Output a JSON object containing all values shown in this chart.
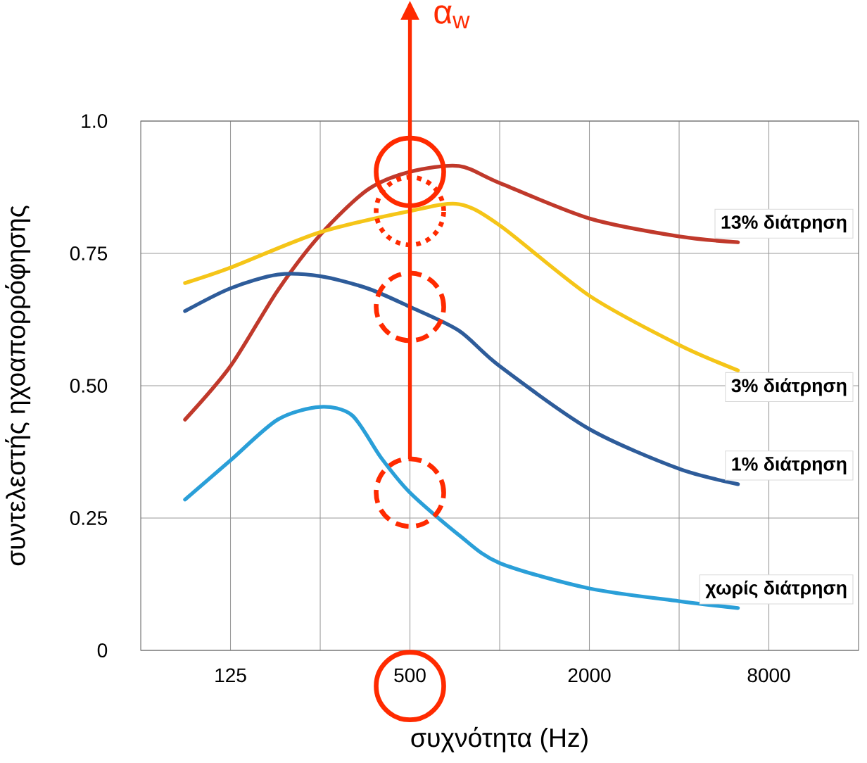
{
  "chart_data": {
    "type": "line",
    "xlabel": "συχνότητα (Hz)",
    "ylabel": "συντελεστής ηχοαπορρόφησης",
    "log": "x",
    "grid": true,
    "legend": false,
    "marker": "none",
    "line_style": "solid",
    "xlim": [
      62.5,
      16000
    ],
    "ylim": [
      0,
      1
    ],
    "xticks": [
      125,
      {
        "value": 250,
        "label": null
      },
      500,
      {
        "value": 1000,
        "label": null
      },
      2000,
      {
        "value": 4000,
        "label": null
      },
      8000
    ],
    "yticks": [
      0,
      {
        "value": 0.25,
        "label": "0.25"
      },
      {
        "value": 0.5,
        "label": "0.50"
      },
      {
        "value": 0.75,
        "label": "0.75"
      },
      {
        "value": 1,
        "label": "1.0"
      }
    ],
    "series": [
      {
        "name": "13% διάτρηση",
        "color": "#c0392b",
        "x": [
          88,
          125,
          180,
          250,
          360,
          500,
          730,
          1000,
          2000,
          4000,
          6300
        ],
        "values": [
          0.436,
          0.537,
          0.68,
          0.785,
          0.87,
          0.904,
          0.915,
          0.883,
          0.816,
          0.782,
          0.771
        ]
      },
      {
        "name": "3% διάτρηση",
        "color": "#f5c518",
        "x": [
          88,
          125,
          250,
          500,
          730,
          1000,
          2000,
          4000,
          6300
        ],
        "values": [
          0.694,
          0.723,
          0.79,
          0.83,
          0.843,
          0.803,
          0.67,
          0.577,
          0.529
        ]
      },
      {
        "name": "1% διάτρηση",
        "color": "#2e5c9a",
        "x": [
          88,
          125,
          180,
          250,
          360,
          500,
          730,
          1000,
          2000,
          4000,
          6300
        ],
        "values": [
          0.641,
          0.684,
          0.71,
          0.707,
          0.684,
          0.649,
          0.604,
          0.537,
          0.418,
          0.343,
          0.314
        ]
      },
      {
        "name": "χωρίς διάτρηση",
        "color": "#2a9fd8",
        "x": [
          88,
          125,
          180,
          250,
          320,
          400,
          500,
          730,
          1000,
          2000,
          4000,
          6300
        ],
        "values": [
          0.285,
          0.359,
          0.436,
          0.46,
          0.444,
          0.364,
          0.298,
          0.218,
          0.165,
          0.117,
          0.093,
          0.08
        ]
      }
    ],
    "ref_lines": [
      {
        "axis": "x",
        "value": 500,
        "label": "α$_{w}$",
        "color": "#ff2a00"
      }
    ]
  }
}
